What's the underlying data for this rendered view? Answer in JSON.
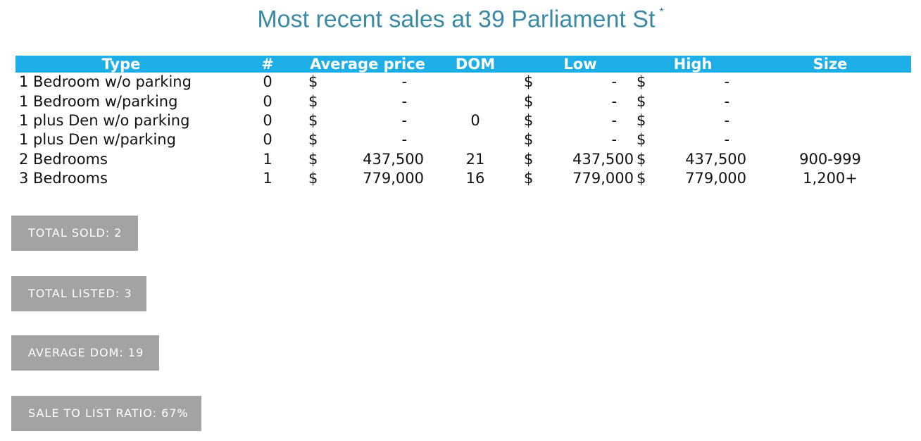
{
  "title": "Most recent sales at 39 Parliament St",
  "title_marker": "*",
  "colors": {
    "title": "#3a8aa6",
    "header_bg": "#1eaee7",
    "header_text": "#ffffff",
    "button_bg": "#a3a3a3",
    "button_text": "#ffffff"
  },
  "table": {
    "headers": {
      "type": "Type",
      "num": "#",
      "avg_price": "Average price",
      "dom": "DOM",
      "low": "Low",
      "high": "High",
      "size": "Size"
    },
    "rows": [
      {
        "type": "1 Bedroom w/o parking",
        "num": "0",
        "avg_cur": "$",
        "avg": "-",
        "dom": "",
        "low_cur": "$",
        "low": "-",
        "high_cur": "$",
        "high": "-",
        "size": ""
      },
      {
        "type": "1 Bedroom w/parking",
        "num": "0",
        "avg_cur": "$",
        "avg": "-",
        "dom": "",
        "low_cur": "$",
        "low": "-",
        "high_cur": "$",
        "high": "-",
        "size": ""
      },
      {
        "type": "1 plus Den w/o parking",
        "num": "0",
        "avg_cur": "$",
        "avg": "-",
        "dom": "0",
        "low_cur": "$",
        "low": "-",
        "high_cur": "$",
        "high": "-",
        "size": ""
      },
      {
        "type": "1 plus Den w/parking",
        "num": "0",
        "avg_cur": "$",
        "avg": "-",
        "dom": "",
        "low_cur": "$",
        "low": "-",
        "high_cur": "$",
        "high": "-",
        "size": ""
      },
      {
        "type": "2 Bedrooms",
        "num": "1",
        "avg_cur": "$",
        "avg": "437,500",
        "dom": "21",
        "low_cur": "$",
        "low": "437,500",
        "high_cur": "$",
        "high": "437,500",
        "size": "900-999"
      },
      {
        "type": "3 Bedrooms",
        "num": "1",
        "avg_cur": "$",
        "avg": "779,000",
        "dom": "16",
        "low_cur": "$",
        "low": "779,000",
        "high_cur": "$",
        "high": "779,000",
        "size": "1,200+"
      }
    ]
  },
  "stats": {
    "total_sold": "TOTAL SOLD: 2",
    "total_listed": "TOTAL LISTED: 3",
    "average_dom": "AVERAGE DOM: 19",
    "sale_to_list": "SALE TO LIST RATIO: 67%"
  }
}
